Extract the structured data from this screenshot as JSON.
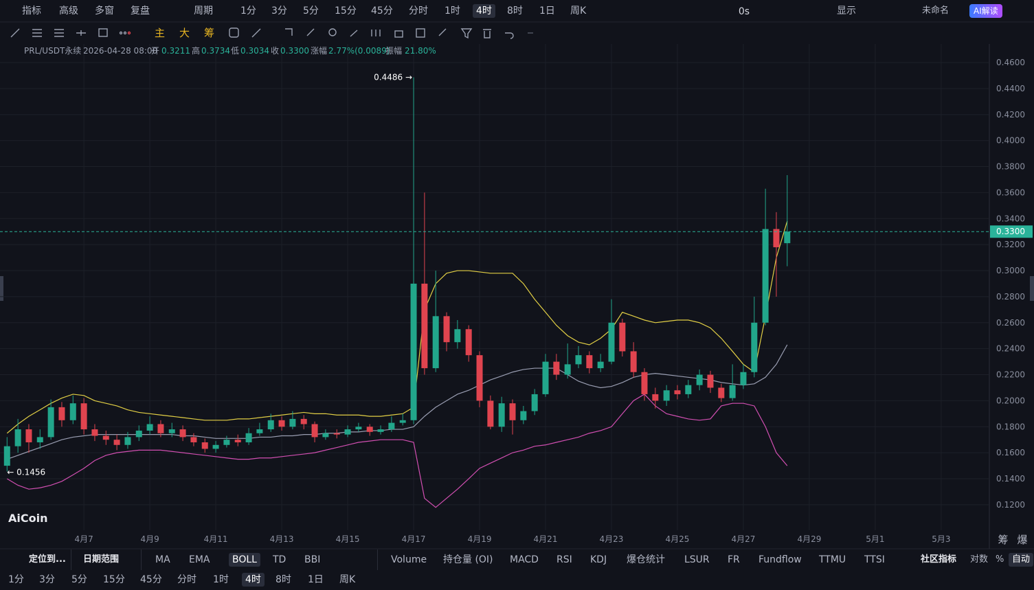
{
  "toolbar": {
    "left": [
      {
        "label": "指标"
      },
      {
        "label": "高级"
      },
      {
        "label": "多窗"
      },
      {
        "label": "复盘"
      }
    ],
    "cycle": "周期",
    "periods": [
      {
        "label": "1分"
      },
      {
        "label": "3分"
      },
      {
        "label": "5分"
      },
      {
        "label": "15分"
      },
      {
        "label": "45分"
      },
      {
        "label": "分时"
      },
      {
        "label": "1时"
      },
      {
        "label": "4时",
        "active": true
      },
      {
        "label": "8时"
      },
      {
        "label": "1日"
      },
      {
        "label": "周K"
      }
    ],
    "right": [
      "0s",
      "显示",
      "未命名"
    ],
    "ai_button": "AI解读"
  },
  "draw_toolbar": {
    "buttons": [
      "主",
      "大",
      "筹"
    ]
  },
  "info": {
    "symbol": "PRL/USDT永续",
    "time": "2026-04-28 08:00",
    "fields": [
      {
        "label": "开",
        "value": "0.3211"
      },
      {
        "label": "高",
        "value": "0.3734"
      },
      {
        "label": "低",
        "value": "0.3034"
      },
      {
        "label": "收",
        "value": "0.3300"
      },
      {
        "label": "涨幅",
        "value": "2.77%(0.0089)"
      },
      {
        "label": "振幅",
        "value": "21.80%"
      }
    ]
  },
  "chart_data": {
    "type": "candlestick",
    "x": [
      4.67,
      5,
      5.33,
      5.67,
      6,
      6.33,
      6.67,
      7,
      7.33,
      7.67,
      8,
      8.33,
      8.67,
      9,
      9.33,
      9.67,
      10,
      10.33,
      10.67,
      11,
      11.33,
      11.67,
      12,
      12.33,
      12.67,
      13,
      13.33,
      13.67,
      14,
      14.33,
      14.67,
      15,
      15.33,
      15.67,
      16,
      16.33,
      16.67,
      17,
      17.33,
      17.67,
      18,
      18.33,
      18.67,
      19,
      19.33,
      19.67,
      20,
      20.33,
      20.67,
      21,
      21.33,
      21.67,
      22,
      22.33,
      22.67,
      23,
      23.33,
      23.67,
      24,
      24.33,
      24.67,
      25,
      25.33,
      25.67,
      26,
      26.33,
      26.67,
      27,
      27.33,
      27.67,
      28,
      28.33
    ],
    "open": [
      0.15,
      0.165,
      0.178,
      0.168,
      0.172,
      0.195,
      0.185,
      0.198,
      0.178,
      0.173,
      0.17,
      0.166,
      0.172,
      0.177,
      0.182,
      0.175,
      0.178,
      0.172,
      0.168,
      0.163,
      0.166,
      0.17,
      0.168,
      0.175,
      0.178,
      0.185,
      0.18,
      0.186,
      0.182,
      0.172,
      0.175,
      0.174,
      0.178,
      0.18,
      0.176,
      0.178,
      0.183,
      0.185,
      0.29,
      0.225,
      0.265,
      0.245,
      0.255,
      0.235,
      0.2,
      0.18,
      0.198,
      0.185,
      0.192,
      0.205,
      0.23,
      0.22,
      0.228,
      0.235,
      0.225,
      0.23,
      0.26,
      0.238,
      0.222,
      0.205,
      0.2,
      0.208,
      0.205,
      0.212,
      0.22,
      0.21,
      0.202,
      0.212,
      0.222,
      0.26,
      0.332,
      0.3211
    ],
    "high": [
      0.172,
      0.186,
      0.182,
      0.178,
      0.201,
      0.199,
      0.204,
      0.202,
      0.182,
      0.177,
      0.174,
      0.176,
      0.181,
      0.188,
      0.185,
      0.183,
      0.181,
      0.175,
      0.171,
      0.169,
      0.173,
      0.174,
      0.179,
      0.183,
      0.19,
      0.188,
      0.192,
      0.189,
      0.184,
      0.178,
      0.178,
      0.181,
      0.183,
      0.182,
      0.181,
      0.188,
      0.19,
      0.4486,
      0.36,
      0.3,
      0.268,
      0.262,
      0.258,
      0.238,
      0.204,
      0.203,
      0.201,
      0.196,
      0.209,
      0.236,
      0.236,
      0.244,
      0.242,
      0.238,
      0.236,
      0.278,
      0.263,
      0.245,
      0.225,
      0.21,
      0.212,
      0.212,
      0.216,
      0.224,
      0.223,
      0.213,
      0.228,
      0.228,
      0.28,
      0.363,
      0.345,
      0.3734
    ],
    "low": [
      0.1456,
      0.16,
      0.16,
      0.163,
      0.17,
      0.18,
      0.182,
      0.174,
      0.169,
      0.166,
      0.162,
      0.163,
      0.169,
      0.174,
      0.172,
      0.172,
      0.169,
      0.165,
      0.16,
      0.16,
      0.164,
      0.165,
      0.166,
      0.173,
      0.176,
      0.177,
      0.178,
      0.178,
      0.168,
      0.17,
      0.171,
      0.172,
      0.176,
      0.173,
      0.174,
      0.176,
      0.181,
      0.182,
      0.22,
      0.222,
      0.238,
      0.24,
      0.23,
      0.195,
      0.178,
      0.176,
      0.174,
      0.182,
      0.189,
      0.203,
      0.216,
      0.217,
      0.225,
      0.221,
      0.222,
      0.228,
      0.234,
      0.218,
      0.2,
      0.194,
      0.196,
      0.201,
      0.202,
      0.208,
      0.206,
      0.199,
      0.2,
      0.209,
      0.218,
      0.258,
      0.28,
      0.3034
    ],
    "close": [
      0.165,
      0.178,
      0.168,
      0.172,
      0.195,
      0.185,
      0.198,
      0.178,
      0.173,
      0.17,
      0.166,
      0.172,
      0.177,
      0.182,
      0.175,
      0.178,
      0.172,
      0.168,
      0.163,
      0.166,
      0.17,
      0.168,
      0.175,
      0.178,
      0.185,
      0.18,
      0.186,
      0.182,
      0.172,
      0.175,
      0.174,
      0.178,
      0.18,
      0.176,
      0.178,
      0.183,
      0.185,
      0.29,
      0.225,
      0.265,
      0.245,
      0.255,
      0.235,
      0.2,
      0.18,
      0.198,
      0.185,
      0.192,
      0.205,
      0.23,
      0.22,
      0.228,
      0.235,
      0.225,
      0.23,
      0.26,
      0.238,
      0.222,
      0.205,
      0.2,
      0.208,
      0.205,
      0.212,
      0.22,
      0.21,
      0.202,
      0.212,
      0.222,
      0.26,
      0.332,
      0.318,
      0.33
    ],
    "overlays": [
      {
        "color": "#e3d045",
        "values": [
          0.175,
          0.182,
          0.188,
          0.193,
          0.198,
          0.202,
          0.205,
          0.204,
          0.2,
          0.198,
          0.196,
          0.193,
          0.191,
          0.19,
          0.189,
          0.188,
          0.187,
          0.186,
          0.185,
          0.185,
          0.185,
          0.186,
          0.186,
          0.187,
          0.188,
          0.189,
          0.19,
          0.191,
          0.19,
          0.19,
          0.189,
          0.189,
          0.189,
          0.188,
          0.188,
          0.189,
          0.19,
          0.195,
          0.27,
          0.29,
          0.298,
          0.3,
          0.3,
          0.299,
          0.298,
          0.298,
          0.298,
          0.29,
          0.278,
          0.268,
          0.258,
          0.25,
          0.245,
          0.243,
          0.248,
          0.255,
          0.268,
          0.265,
          0.262,
          0.26,
          0.261,
          0.262,
          0.262,
          0.26,
          0.256,
          0.248,
          0.238,
          0.228,
          0.222,
          0.265,
          0.31,
          0.338
        ]
      },
      {
        "color": "#9a9eb2",
        "values": [
          0.155,
          0.158,
          0.161,
          0.164,
          0.167,
          0.17,
          0.172,
          0.173,
          0.174,
          0.174,
          0.174,
          0.174,
          0.174,
          0.174,
          0.174,
          0.174,
          0.173,
          0.173,
          0.172,
          0.171,
          0.171,
          0.171,
          0.171,
          0.172,
          0.172,
          0.173,
          0.173,
          0.174,
          0.174,
          0.175,
          0.175,
          0.176,
          0.176,
          0.177,
          0.177,
          0.178,
          0.178,
          0.18,
          0.188,
          0.195,
          0.2,
          0.205,
          0.208,
          0.212,
          0.216,
          0.219,
          0.222,
          0.224,
          0.225,
          0.225,
          0.225,
          0.22,
          0.215,
          0.212,
          0.21,
          0.211,
          0.214,
          0.218,
          0.22,
          0.221,
          0.22,
          0.219,
          0.218,
          0.217,
          0.216,
          0.214,
          0.213,
          0.212,
          0.213,
          0.218,
          0.228,
          0.243
        ]
      },
      {
        "color": "#d24fb2",
        "values": [
          0.14,
          0.135,
          0.132,
          0.133,
          0.135,
          0.138,
          0.143,
          0.148,
          0.154,
          0.158,
          0.16,
          0.161,
          0.162,
          0.162,
          0.162,
          0.161,
          0.16,
          0.159,
          0.158,
          0.157,
          0.156,
          0.155,
          0.155,
          0.156,
          0.156,
          0.157,
          0.158,
          0.159,
          0.16,
          0.162,
          0.164,
          0.166,
          0.168,
          0.169,
          0.17,
          0.17,
          0.17,
          0.168,
          0.125,
          0.118,
          0.125,
          0.132,
          0.14,
          0.148,
          0.152,
          0.156,
          0.16,
          0.162,
          0.165,
          0.166,
          0.168,
          0.17,
          0.172,
          0.175,
          0.177,
          0.18,
          0.19,
          0.2,
          0.205,
          0.196,
          0.19,
          0.188,
          0.186,
          0.185,
          0.186,
          0.196,
          0.198,
          0.198,
          0.196,
          0.18,
          0.16,
          0.15
        ]
      }
    ],
    "up_color": "#22a68b",
    "down_color": "#e0444f",
    "xlim": [
      4.56,
      34.46
    ],
    "ylim": [
      0.1004,
      0.4743
    ],
    "xticks": [
      {
        "value": 7,
        "label": "4月7"
      },
      {
        "value": 9,
        "label": "4月9"
      },
      {
        "value": 11,
        "label": "4月11"
      },
      {
        "value": 13,
        "label": "4月13"
      },
      {
        "value": 15,
        "label": "4月15"
      },
      {
        "value": 17,
        "label": "4月17"
      },
      {
        "value": 19,
        "label": "4月19"
      },
      {
        "value": 21,
        "label": "4月21"
      },
      {
        "value": 23,
        "label": "4月23"
      },
      {
        "value": 25,
        "label": "4月25"
      },
      {
        "value": 27,
        "label": "4月27"
      },
      {
        "value": 29,
        "label": "4月29"
      },
      {
        "value": 31,
        "label": "5月1"
      },
      {
        "value": 33,
        "label": "5月3"
      }
    ],
    "yticks": [
      {
        "value": 0.12,
        "label": "0.1200"
      },
      {
        "value": 0.14,
        "label": "0.1400"
      },
      {
        "value": 0.16,
        "label": "0.1600"
      },
      {
        "value": 0.18,
        "label": "0.1800"
      },
      {
        "value": 0.2,
        "label": "0.2000"
      },
      {
        "value": 0.22,
        "label": "0.2200"
      },
      {
        "value": 0.24,
        "label": "0.2400"
      },
      {
        "value": 0.26,
        "label": "0.2600"
      },
      {
        "value": 0.28,
        "label": "0.2800"
      },
      {
        "value": 0.3,
        "label": "0.3000"
      },
      {
        "value": 0.32,
        "label": "0.3200"
      },
      {
        "value": 0.34,
        "label": "0.3400"
      },
      {
        "value": 0.36,
        "label": "0.3600"
      },
      {
        "value": 0.38,
        "label": "0.3800"
      },
      {
        "value": 0.4,
        "label": "0.4000"
      },
      {
        "value": 0.42,
        "label": "0.4200"
      },
      {
        "value": 0.44,
        "label": "0.4400"
      },
      {
        "value": 0.46,
        "label": "0.4600"
      }
    ],
    "grid": true,
    "annotations": [
      {
        "text": "0.4486 →"
      },
      {
        "text": "← 0.1456"
      }
    ],
    "last_price": {
      "label": "0.3300",
      "color": "#2ab39a"
    }
  },
  "watermark": "AiCoin",
  "axis_corner": [
    "筹",
    "爆"
  ],
  "indicator_bar": {
    "locate": "定位到...",
    "date_range": "日期范围",
    "main": [
      {
        "label": "MA"
      },
      {
        "label": "EMA"
      },
      {
        "label": "BOLL",
        "active": true
      },
      {
        "label": "TD"
      },
      {
        "label": "BBI"
      }
    ],
    "sub": [
      {
        "label": "Volume"
      },
      {
        "label": "持仓量 (OI)"
      },
      {
        "label": "MACD"
      },
      {
        "label": "RSI"
      },
      {
        "label": "KDJ"
      },
      {
        "label": "爆仓统计"
      },
      {
        "label": "LSUR"
      },
      {
        "label": "FR"
      },
      {
        "label": "Fundflow"
      },
      {
        "label": "TTMU"
      },
      {
        "label": "TTSI"
      }
    ],
    "community": "社区指标",
    "options": [
      {
        "label": "对数"
      },
      {
        "label": "%"
      },
      {
        "label": "自动",
        "active": true
      }
    ]
  },
  "period_bar": [
    {
      "label": "1分"
    },
    {
      "label": "3分"
    },
    {
      "label": "5分"
    },
    {
      "label": "15分"
    },
    {
      "label": "45分"
    },
    {
      "label": "分时"
    },
    {
      "label": "1时"
    },
    {
      "label": "4时",
      "active": true
    },
    {
      "label": "8时"
    },
    {
      "label": "1日"
    },
    {
      "label": "周K"
    }
  ]
}
